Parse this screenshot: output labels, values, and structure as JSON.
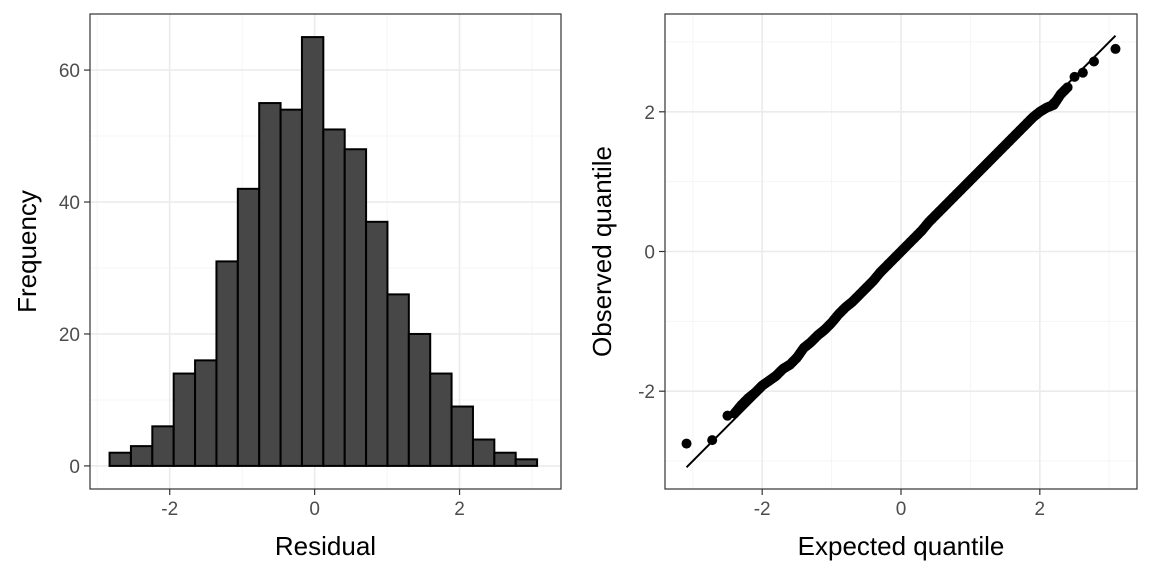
{
  "colors": {
    "bar_fill": "#474747",
    "bar_stroke": "#000000",
    "point": "#000000",
    "line": "#000000",
    "grid_major": "#ebebeb",
    "grid_minor": "#f5f5f5",
    "panel_border": "#333333",
    "background": "#ffffff"
  },
  "chart_data": [
    {
      "type": "bar",
      "subtype": "histogram",
      "xlabel": "Residual",
      "ylabel": "Frequency",
      "xlim": [
        -3.1,
        3.4
      ],
      "ylim": [
        -3.5,
        68.5
      ],
      "xticks": [
        "-2",
        "0",
        "2"
      ],
      "yticks": [
        "0",
        "20",
        "40",
        "60"
      ],
      "bin_width": 0.295,
      "bin_start": -2.83,
      "values": [
        2,
        3,
        6,
        14,
        16,
        31,
        42,
        55,
        54,
        65,
        51,
        48,
        37,
        26,
        20,
        14,
        9,
        4,
        2,
        1
      ],
      "grid": true,
      "legend": "none"
    },
    {
      "type": "scatter",
      "subtype": "qq-plot",
      "xlabel": "Expected quantile",
      "ylabel": "Observed quantile",
      "xlim": [
        -3.4,
        3.4
      ],
      "ylim": [
        -3.4,
        3.4
      ],
      "xticks": [
        "-2",
        "0",
        "2"
      ],
      "yticks": [
        "-2",
        "0",
        "2"
      ],
      "reference_line": {
        "intercept": 0,
        "slope": 1
      },
      "points": {
        "x": [
          -3.09,
          -2.72,
          -2.5,
          -2.4,
          -2.3,
          -2.2,
          -2.1,
          -2.0,
          -1.9,
          -1.8,
          -1.7,
          -1.6,
          -1.5,
          -1.4,
          -1.3,
          -1.2,
          -1.1,
          -1.0,
          -0.9,
          -0.8,
          -0.7,
          -0.6,
          -0.5,
          -0.4,
          -0.3,
          -0.2,
          -0.1,
          0.0,
          0.1,
          0.2,
          0.3,
          0.4,
          0.5,
          0.6,
          0.7,
          0.8,
          0.9,
          1.0,
          1.1,
          1.2,
          1.3,
          1.4,
          1.5,
          1.6,
          1.7,
          1.8,
          1.9,
          2.0,
          2.1,
          2.2,
          2.3,
          2.4,
          2.5,
          2.62,
          2.78,
          3.09
        ],
        "y": [
          -2.75,
          -2.7,
          -2.35,
          -2.32,
          -2.2,
          -2.1,
          -2.02,
          -1.92,
          -1.85,
          -1.78,
          -1.68,
          -1.62,
          -1.52,
          -1.38,
          -1.3,
          -1.2,
          -1.12,
          -1.02,
          -0.9,
          -0.8,
          -0.72,
          -0.62,
          -0.52,
          -0.42,
          -0.3,
          -0.2,
          -0.1,
          0.0,
          0.1,
          0.2,
          0.3,
          0.42,
          0.52,
          0.62,
          0.72,
          0.82,
          0.92,
          1.02,
          1.12,
          1.22,
          1.32,
          1.42,
          1.52,
          1.62,
          1.72,
          1.82,
          1.92,
          2.0,
          2.06,
          2.1,
          2.25,
          2.35,
          2.5,
          2.56,
          2.72,
          2.9
        ]
      },
      "grid": true,
      "legend": "none"
    }
  ]
}
